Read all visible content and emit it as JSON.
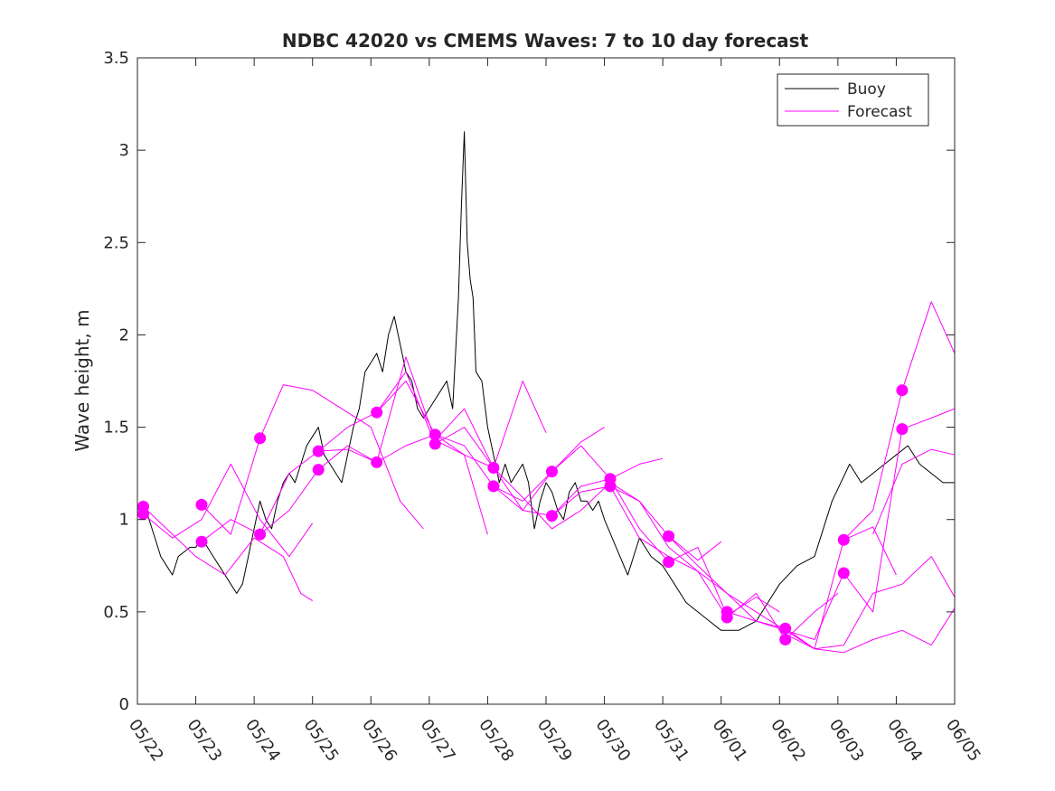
{
  "chart_data": {
    "type": "line",
    "title": "NDBC 42020 vs CMEMS Waves: 7 to 10 day forecast",
    "xlabel": "",
    "ylabel": "Wave height, m",
    "xlim": [
      0,
      14
    ],
    "ylim": [
      0,
      3.5
    ],
    "xticks": [
      0,
      1,
      2,
      3,
      4,
      5,
      6,
      7,
      8,
      9,
      10,
      11,
      12,
      13,
      14
    ],
    "xtick_labels": [
      "05/22",
      "05/23",
      "05/24",
      "05/25",
      "05/26",
      "05/27",
      "05/28",
      "05/29",
      "05/30",
      "05/31",
      "06/01",
      "06/02",
      "06/03",
      "06/04",
      "06/05"
    ],
    "yticks": [
      0,
      0.5,
      1,
      1.5,
      2,
      2.5,
      3,
      3.5
    ],
    "ytick_labels": [
      "0",
      "0.5",
      "1",
      "1.5",
      "2",
      "2.5",
      "3",
      "3.5"
    ],
    "grid": false,
    "legend": {
      "placement": "top-right",
      "entries": [
        "Buoy",
        "Forecast"
      ]
    },
    "colors": {
      "buoy": "#000000",
      "forecast": "#ff00ff",
      "axis": "#262626"
    },
    "series": [
      {
        "name": "Buoy",
        "color": "#000000",
        "x": [
          0,
          0.1,
          0.2,
          0.3,
          0.4,
          0.5,
          0.6,
          0.7,
          0.9,
          1.0,
          1.1,
          1.2,
          1.3,
          1.4,
          1.5,
          1.6,
          1.7,
          1.8,
          1.9,
          2.0,
          2.1,
          2.2,
          2.3,
          2.4,
          2.5,
          2.6,
          2.7,
          2.8,
          2.9,
          3.0,
          3.1,
          3.2,
          3.3,
          3.4,
          3.5,
          3.6,
          3.7,
          3.8,
          3.9,
          4.0,
          4.1,
          4.2,
          4.3,
          4.4,
          4.5,
          4.6,
          4.7,
          4.8,
          4.9,
          5.0,
          5.1,
          5.2,
          5.3,
          5.4,
          5.5,
          5.55,
          5.6,
          5.65,
          5.7,
          5.75,
          5.8,
          5.9,
          6.0,
          6.1,
          6.2,
          6.3,
          6.4,
          6.5,
          6.6,
          6.7,
          6.8,
          6.9,
          7.0,
          7.1,
          7.2,
          7.3,
          7.4,
          7.5,
          7.6,
          7.7,
          7.8,
          7.9,
          8.0,
          8.2,
          8.4,
          8.6,
          8.8,
          9.0,
          9.2,
          9.4,
          9.6,
          9.8,
          10.0,
          10.3,
          10.6,
          10.8,
          11.0,
          11.3,
          11.6,
          11.9,
          12.2,
          12.4,
          12.6,
          12.8,
          13.0,
          13.2,
          13.4,
          13.6,
          13.8,
          14.0
        ],
        "y": [
          1.05,
          1.1,
          1.0,
          0.9,
          0.8,
          0.75,
          0.7,
          0.8,
          0.85,
          0.85,
          0.9,
          0.85,
          0.8,
          0.75,
          0.7,
          0.65,
          0.6,
          0.65,
          0.8,
          0.95,
          1.1,
          1.0,
          0.95,
          1.1,
          1.2,
          1.25,
          1.2,
          1.3,
          1.4,
          1.45,
          1.5,
          1.35,
          1.3,
          1.25,
          1.2,
          1.35,
          1.5,
          1.6,
          1.8,
          1.85,
          1.9,
          1.8,
          2.0,
          2.1,
          1.95,
          1.8,
          1.75,
          1.6,
          1.55,
          1.6,
          1.65,
          1.7,
          1.75,
          1.6,
          2.2,
          2.7,
          3.1,
          2.5,
          2.3,
          2.2,
          1.8,
          1.75,
          1.5,
          1.35,
          1.2,
          1.3,
          1.2,
          1.25,
          1.3,
          1.2,
          0.95,
          1.1,
          1.2,
          1.15,
          1.05,
          1.0,
          1.15,
          1.2,
          1.1,
          1.1,
          1.05,
          1.1,
          1.0,
          0.85,
          0.7,
          0.9,
          0.8,
          0.75,
          0.65,
          0.55,
          0.5,
          0.45,
          0.4,
          0.4,
          0.45,
          0.55,
          0.65,
          0.75,
          0.8,
          1.1,
          1.3,
          1.2,
          1.25,
          1.3,
          1.35,
          1.4,
          1.3,
          1.25,
          1.2,
          1.2
        ]
      },
      {
        "name": "Forecast",
        "color": "#ff00ff",
        "x": [
          0.1,
          0.5,
          1.0,
          1.5,
          2.0,
          2.5,
          2.8,
          3.0
        ],
        "y": [
          1.07,
          0.95,
          0.8,
          0.7,
          0.9,
          0.8,
          0.6,
          0.56
        ]
      },
      {
        "name": "Forecast",
        "color": "#ff00ff",
        "x": [
          0.1,
          0.6,
          1.1,
          1.6,
          2.1,
          2.6,
          3.0
        ],
        "y": [
          1.03,
          0.9,
          1.0,
          1.3,
          1.0,
          0.8,
          0.98
        ]
      },
      {
        "name": "Forecast",
        "color": "#ff00ff",
        "x": [
          1.1,
          1.6,
          2.1,
          2.5,
          3.0,
          3.5,
          4.0,
          4.5,
          4.9
        ],
        "y": [
          1.08,
          0.92,
          1.44,
          1.73,
          1.7,
          1.6,
          1.5,
          1.1,
          0.95
        ]
      },
      {
        "name": "Forecast",
        "color": "#ff00ff",
        "x": [
          1.1,
          1.6,
          2.1,
          2.6,
          3.1,
          3.6,
          4.1,
          4.6,
          5.1,
          5.6,
          6.0
        ],
        "y": [
          0.88,
          1.0,
          0.92,
          1.25,
          1.37,
          1.5,
          1.58,
          1.75,
          1.46,
          1.35,
          0.92
        ]
      },
      {
        "name": "Forecast",
        "color": "#ff00ff",
        "x": [
          2.1,
          2.6,
          3.1,
          3.6,
          4.1,
          4.6,
          5.1,
          5.6,
          6.1,
          6.6,
          7.0
        ],
        "y": [
          0.92,
          1.05,
          1.27,
          1.4,
          1.31,
          1.88,
          1.43,
          1.6,
          1.28,
          1.75,
          1.47
        ]
      },
      {
        "name": "Forecast",
        "color": "#ff00ff",
        "x": [
          3.1,
          3.6,
          4.1,
          4.6,
          5.1,
          5.6,
          6.1,
          6.6,
          7.1,
          7.6,
          8.0
        ],
        "y": [
          1.37,
          1.38,
          1.31,
          1.4,
          1.46,
          1.4,
          1.18,
          1.1,
          1.26,
          1.42,
          1.5
        ]
      },
      {
        "name": "Forecast",
        "color": "#ff00ff",
        "x": [
          4.1,
          4.6,
          5.1,
          5.6,
          6.1,
          6.6,
          7.1,
          7.6,
          8.1,
          8.6,
          9.0
        ],
        "y": [
          1.58,
          1.8,
          1.41,
          1.5,
          1.28,
          1.05,
          1.02,
          1.18,
          1.22,
          1.3,
          1.33
        ]
      },
      {
        "name": "Forecast",
        "color": "#ff00ff",
        "x": [
          5.1,
          5.6,
          6.1,
          6.6,
          7.1,
          7.6,
          8.1,
          8.6,
          9.1,
          9.6,
          10.0
        ],
        "y": [
          1.43,
          1.35,
          1.28,
          1.12,
          0.95,
          1.05,
          1.2,
          1.1,
          0.91,
          0.78,
          0.88
        ]
      },
      {
        "name": "Forecast",
        "color": "#ff00ff",
        "x": [
          6.1,
          6.6,
          7.1,
          7.6,
          8.1,
          8.6,
          9.1,
          9.6,
          10.1,
          10.6,
          11.0
        ],
        "y": [
          1.18,
          1.05,
          1.26,
          1.4,
          1.22,
          0.95,
          0.77,
          0.85,
          0.48,
          0.58,
          0.5
        ]
      },
      {
        "name": "Forecast",
        "color": "#ff00ff",
        "x": [
          7.1,
          7.6,
          8.1,
          8.6,
          9.1,
          9.6,
          10.1,
          10.6,
          11.1,
          11.6,
          12.0
        ],
        "y": [
          1.02,
          1.15,
          1.18,
          1.1,
          0.85,
          0.72,
          0.47,
          0.6,
          0.35,
          0.5,
          0.6
        ]
      },
      {
        "name": "Forecast",
        "color": "#ff00ff",
        "x": [
          8.1,
          8.6,
          9.1,
          9.6,
          10.1,
          10.6,
          11.1,
          11.6,
          12.1,
          12.6,
          13.0
        ],
        "y": [
          1.18,
          0.9,
          0.8,
          0.72,
          0.6,
          0.45,
          0.41,
          0.3,
          0.89,
          0.96,
          0.7
        ]
      },
      {
        "name": "Forecast",
        "color": "#ff00ff",
        "x": [
          9.1,
          9.6,
          10.1,
          10.6,
          11.1,
          11.6,
          12.1,
          12.6,
          13.1,
          13.6,
          14.0
        ],
        "y": [
          0.91,
          0.75,
          0.6,
          0.5,
          0.4,
          0.35,
          0.71,
          0.5,
          1.49,
          1.55,
          1.6
        ]
      },
      {
        "name": "Forecast",
        "color": "#ff00ff",
        "x": [
          10.1,
          10.6,
          11.1,
          11.6,
          12.1,
          12.6,
          13.1,
          13.6,
          14.0
        ],
        "y": [
          0.5,
          0.45,
          0.4,
          0.3,
          0.28,
          0.35,
          0.4,
          0.32,
          0.52
        ]
      },
      {
        "name": "Forecast",
        "color": "#ff00ff",
        "x": [
          11.1,
          11.6,
          12.1,
          12.6,
          13.1,
          13.6,
          14.0
        ],
        "y": [
          0.38,
          0.3,
          0.32,
          0.6,
          0.65,
          0.8,
          0.58
        ]
      },
      {
        "name": "Forecast",
        "color": "#ff00ff",
        "x": [
          12.1,
          12.6,
          13.1,
          13.6,
          14.0
        ],
        "y": [
          0.89,
          1.05,
          1.7,
          2.18,
          1.9
        ]
      },
      {
        "name": "Forecast",
        "color": "#ff00ff",
        "x": [
          12.6,
          13.1,
          13.6,
          14.0
        ],
        "y": [
          0.92,
          1.3,
          1.38,
          1.35
        ]
      }
    ],
    "markers": {
      "name": "Forecast initialisation points",
      "color": "#ff00ff",
      "x": [
        0.1,
        0.1,
        1.1,
        1.1,
        2.1,
        2.1,
        3.1,
        3.1,
        4.1,
        4.1,
        5.1,
        5.1,
        6.1,
        6.1,
        7.1,
        7.1,
        8.1,
        8.1,
        9.1,
        9.1,
        10.1,
        10.1,
        11.1,
        11.1,
        12.1,
        12.1,
        13.1,
        13.1
      ],
      "y": [
        1.07,
        1.03,
        1.08,
        0.88,
        1.44,
        0.92,
        1.37,
        1.27,
        1.58,
        1.31,
        1.46,
        1.41,
        1.28,
        1.18,
        1.26,
        1.02,
        1.22,
        1.18,
        0.91,
        0.77,
        0.5,
        0.47,
        0.41,
        0.35,
        0.89,
        0.71,
        1.7,
        1.49
      ]
    }
  }
}
